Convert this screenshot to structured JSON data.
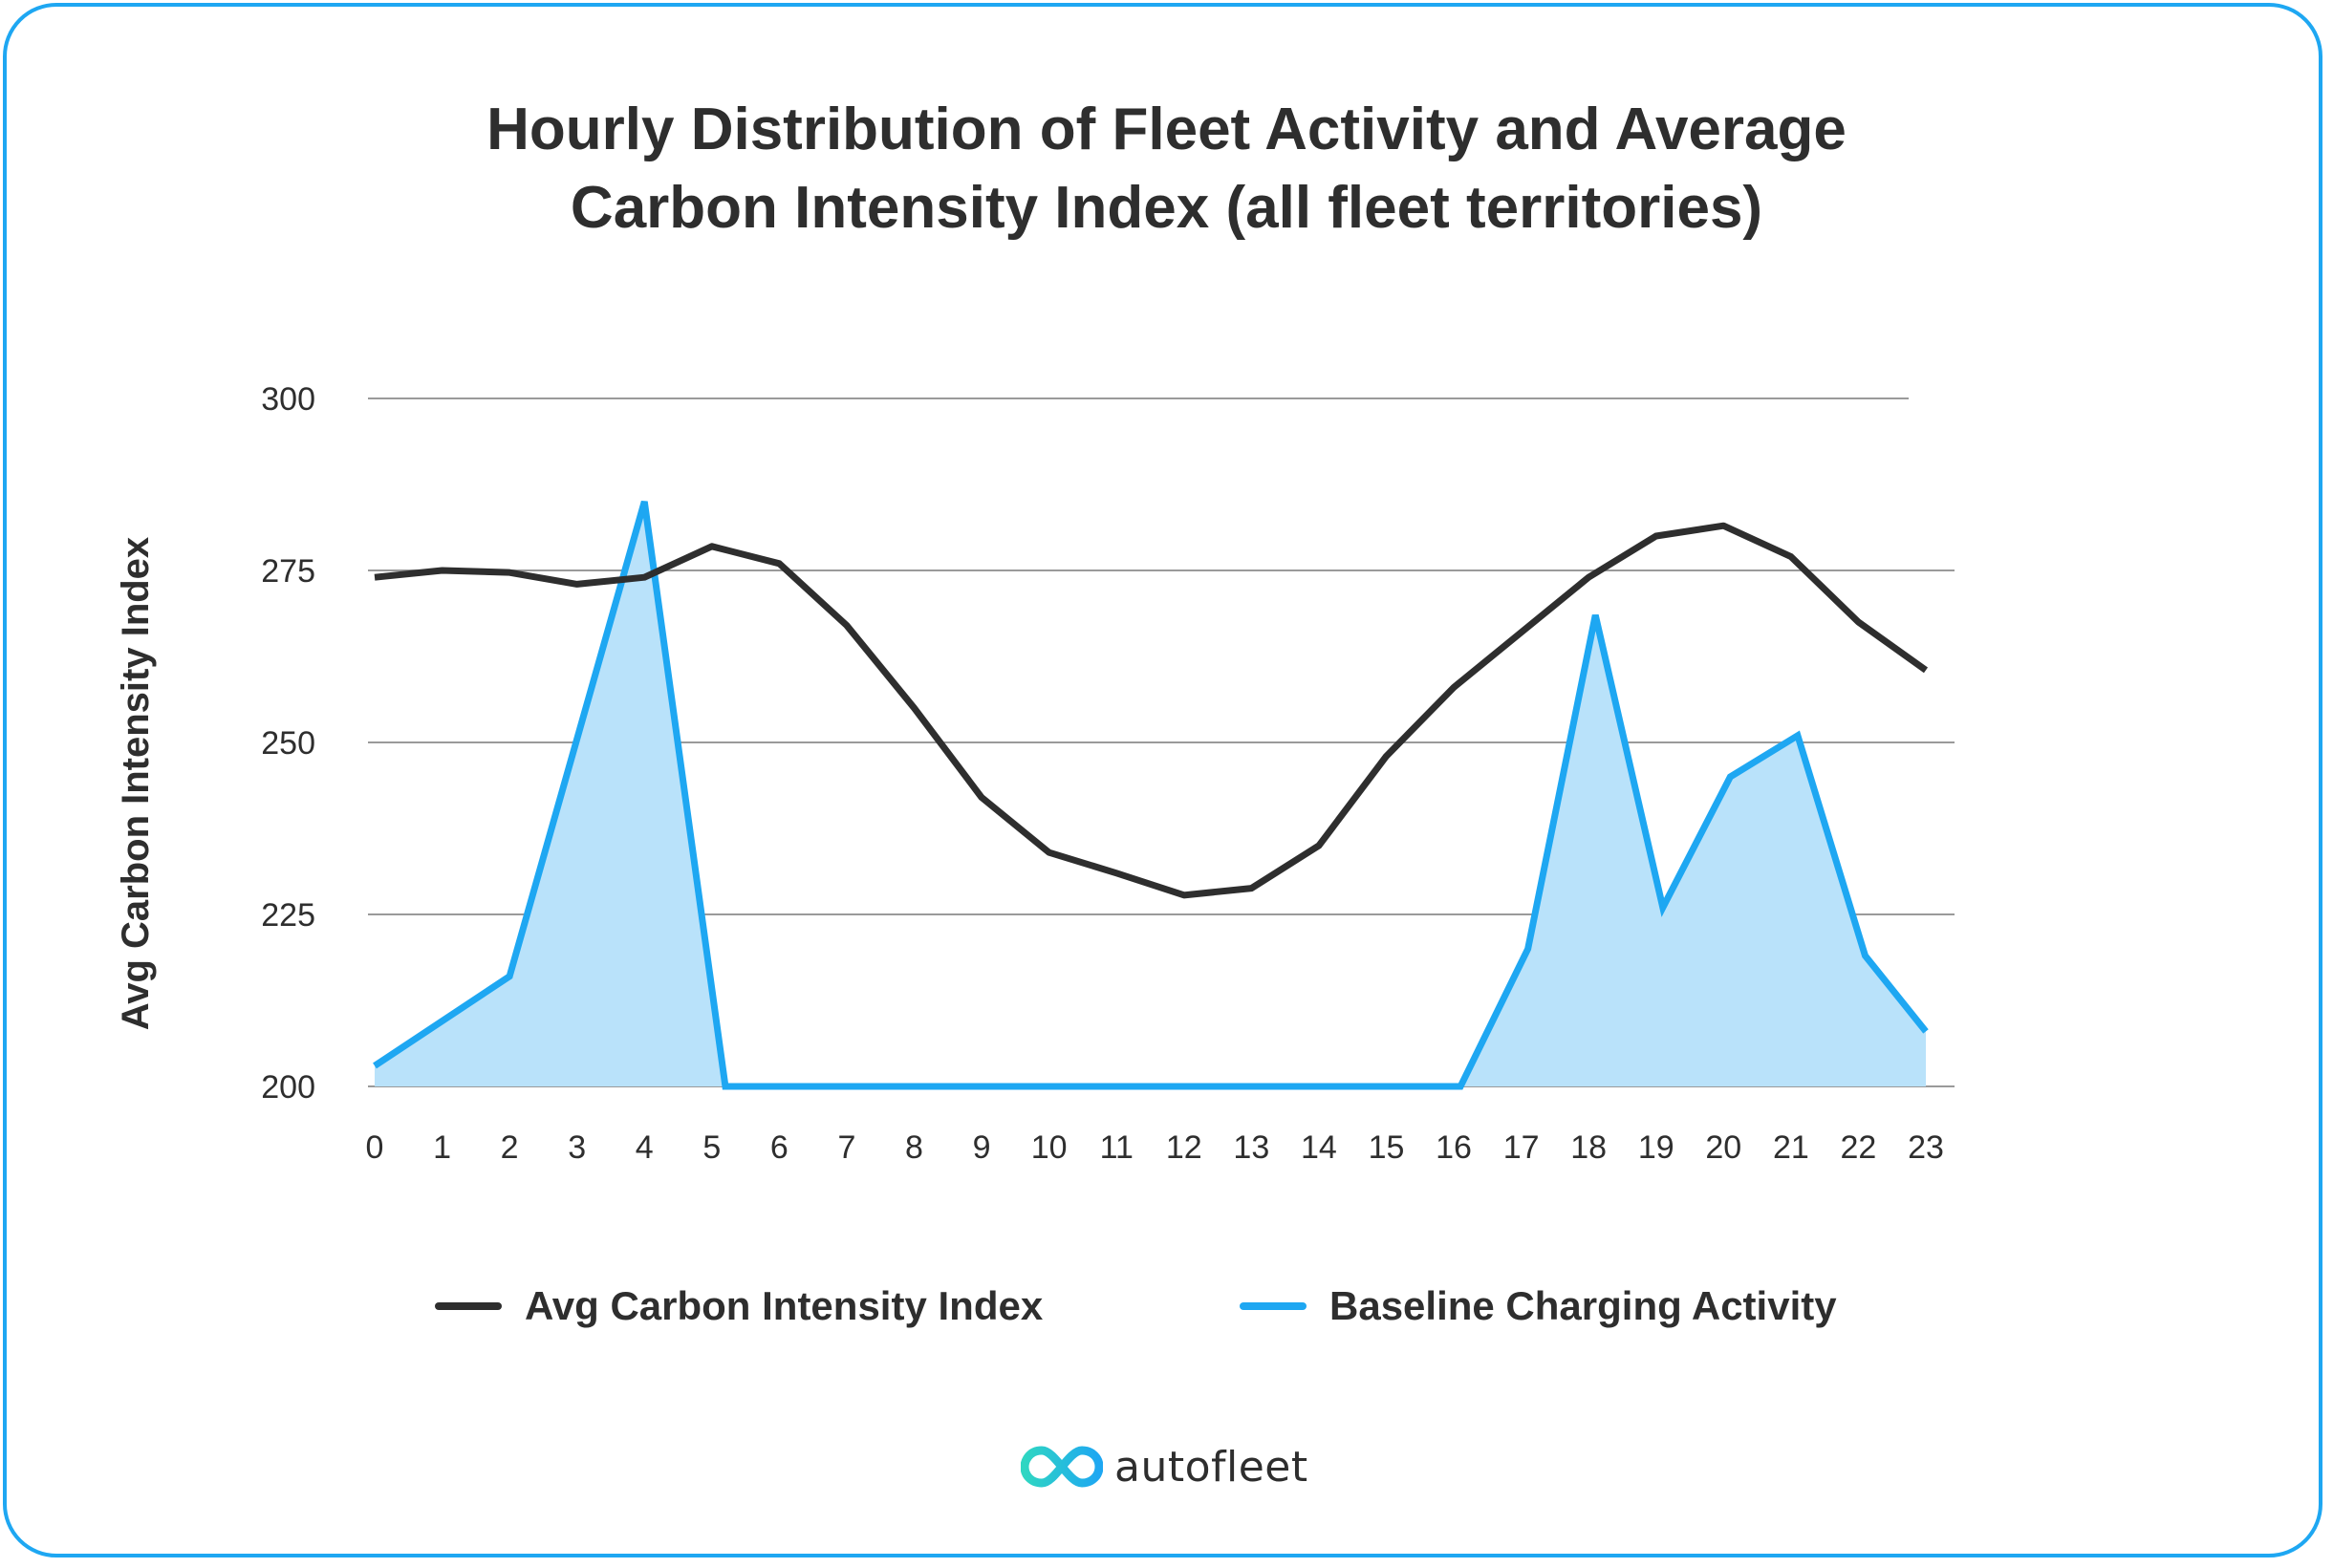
{
  "title_lines": [
    "Hourly Distribution of Fleet Activity and Average",
    "Carbon Intensity Index (all fleet territories)"
  ],
  "brand": {
    "name": "autofleet",
    "colors": {
      "accent": "#1ea7f2",
      "teal": "#2fd6c2",
      "text": "#2e2e2e"
    }
  },
  "chart_data": {
    "type": "line",
    "ylabel": "Avg Carbon Intensity Index",
    "xlabel": "",
    "ylim": [
      200,
      300
    ],
    "yticks": [
      200,
      225,
      250,
      275,
      300
    ],
    "categories": [
      "0",
      "1",
      "2",
      "3",
      "4",
      "5",
      "6",
      "7",
      "8",
      "9",
      "10",
      "11",
      "12",
      "13",
      "14",
      "15",
      "16",
      "17",
      "18",
      "19",
      "20",
      "21",
      "22",
      "23"
    ],
    "grid": true,
    "legend_position": "bottom",
    "series": [
      {
        "name": "Avg Carbon Intensity Index",
        "color": "#2e2e2e",
        "style": "line",
        "points": [
          [
            0,
            274
          ],
          [
            1,
            275
          ],
          [
            2,
            274.7
          ],
          [
            3,
            273
          ],
          [
            4,
            274
          ],
          [
            5,
            278.5
          ],
          [
            6,
            276
          ],
          [
            7,
            267
          ],
          [
            8,
            255
          ],
          [
            9,
            242
          ],
          [
            10,
            234
          ],
          [
            11,
            231
          ],
          [
            12,
            227.8
          ],
          [
            13,
            228.8
          ],
          [
            14,
            235
          ],
          [
            15,
            248
          ],
          [
            16,
            258
          ],
          [
            17,
            266
          ],
          [
            18,
            274
          ],
          [
            19,
            280
          ],
          [
            20,
            281.5
          ],
          [
            21,
            277
          ],
          [
            22,
            267.5
          ],
          [
            23,
            260.5
          ]
        ]
      },
      {
        "name": "Baseline Charging Activity",
        "color": "#1ea7f2",
        "fill": "#b9e2fa",
        "style": "area",
        "points": [
          [
            0,
            203
          ],
          [
            2,
            216
          ],
          [
            4,
            285
          ],
          [
            5.2,
            200
          ],
          [
            16.1,
            200
          ],
          [
            17.1,
            220
          ],
          [
            18.1,
            268.5
          ],
          [
            19.1,
            226
          ],
          [
            20.1,
            245
          ],
          [
            21.1,
            251
          ],
          [
            22.1,
            219
          ],
          [
            23,
            208
          ]
        ]
      }
    ]
  }
}
